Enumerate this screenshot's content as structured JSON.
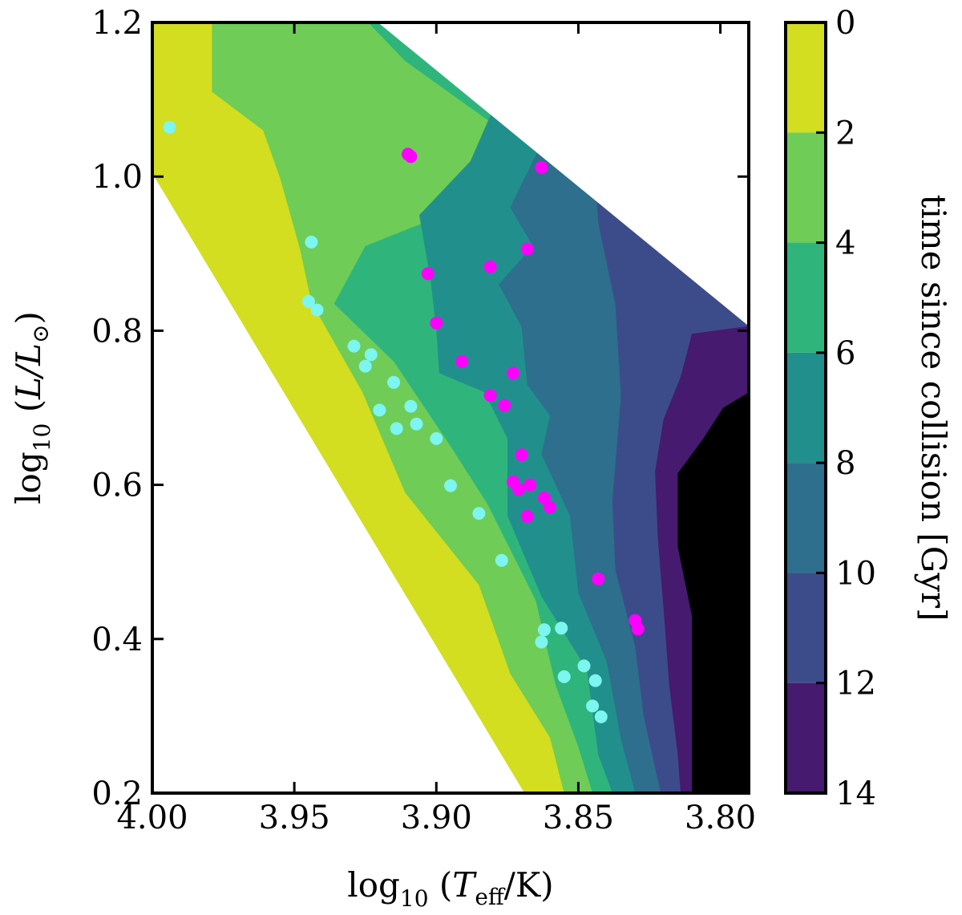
{
  "chart_data": {
    "type": "contour-scatter",
    "xlabel_prefix": "log",
    "xlabel_sub": "10",
    "xlabel_var": "T",
    "xlabel_var_sub": "eff",
    "xlabel_unit": "/K)",
    "ylabel_prefix": "log",
    "ylabel_sub": "10",
    "ylabel_var": "L/L",
    "ylabel_var_sub": "⊙",
    "xlim": [
      4.0,
      3.79
    ],
    "ylim": [
      0.2,
      1.2
    ],
    "x_ticks": [
      "4.00",
      "3.95",
      "3.90",
      "3.85",
      "3.80"
    ],
    "x_tick_values": [
      4.0,
      3.95,
      3.9,
      3.85,
      3.8
    ],
    "y_ticks": [
      "0.2",
      "0.4",
      "0.6",
      "0.8",
      "1.0",
      "1.2"
    ],
    "y_tick_values": [
      0.2,
      0.4,
      0.6,
      0.8,
      1.0,
      1.2
    ],
    "colorbar": {
      "label": "time since collision [Gyr]",
      "ticks": [
        "0",
        "2",
        "4",
        "6",
        "8",
        "10",
        "12",
        "14"
      ],
      "tick_values": [
        0,
        2,
        4,
        6,
        8,
        10,
        12,
        14
      ],
      "colors": [
        "#d2de1f",
        "#6fcc57",
        "#2fb57b",
        "#21908c",
        "#2d6f8d",
        "#3c4c8a",
        "#461a6e"
      ]
    },
    "contour_boundaries": {
      "note": "approximate contour-level boundaries in (log Teff, log L) data units",
      "domain": [
        [
          4.0,
          1.2
        ],
        [
          3.924,
          1.2
        ],
        [
          3.79,
          0.806
        ],
        [
          3.79,
          0.2
        ],
        [
          3.869,
          0.2
        ],
        [
          4.0,
          1.004
        ]
      ],
      "b2": [
        [
          4.0,
          1.2
        ],
        [
          3.979,
          1.2
        ],
        [
          3.979,
          1.11
        ],
        [
          3.961,
          1.06
        ],
        [
          3.955,
          0.998
        ],
        [
          3.948,
          0.906
        ],
        [
          3.944,
          0.837
        ],
        [
          3.926,
          0.72
        ],
        [
          3.911,
          0.59
        ],
        [
          3.885,
          0.47
        ],
        [
          3.874,
          0.355
        ],
        [
          3.86,
          0.272
        ],
        [
          3.855,
          0.2
        ]
      ],
      "b4": [
        [
          3.924,
          1.2
        ],
        [
          3.911,
          1.15
        ],
        [
          3.878,
          1.063
        ],
        [
          3.877,
          0.98
        ],
        [
          3.925,
          0.91
        ],
        [
          3.936,
          0.835
        ],
        [
          3.915,
          0.76
        ],
        [
          3.895,
          0.65
        ],
        [
          3.882,
          0.575
        ],
        [
          3.865,
          0.45
        ],
        [
          3.858,
          0.34
        ],
        [
          3.85,
          0.26
        ],
        [
          3.845,
          0.2
        ]
      ],
      "b6": [
        [
          3.882,
          1.2
        ],
        [
          3.875,
          1.13
        ],
        [
          3.888,
          1.02
        ],
        [
          3.906,
          0.95
        ],
        [
          3.902,
          0.865
        ],
        [
          3.9,
          0.8
        ],
        [
          3.899,
          0.745
        ],
        [
          3.883,
          0.72
        ],
        [
          3.875,
          0.66
        ],
        [
          3.875,
          0.56
        ],
        [
          3.863,
          0.455
        ],
        [
          3.847,
          0.36
        ],
        [
          3.843,
          0.25
        ],
        [
          3.838,
          0.2
        ]
      ],
      "b8": [
        [
          3.869,
          1.2
        ],
        [
          3.862,
          1.05
        ],
        [
          3.874,
          0.96
        ],
        [
          3.866,
          0.91
        ],
        [
          3.878,
          0.86
        ],
        [
          3.87,
          0.805
        ],
        [
          3.868,
          0.73
        ],
        [
          3.86,
          0.69
        ],
        [
          3.863,
          0.64
        ],
        [
          3.853,
          0.56
        ],
        [
          3.85,
          0.46
        ],
        [
          3.84,
          0.37
        ],
        [
          3.835,
          0.27
        ],
        [
          3.83,
          0.2
        ]
      ],
      "b10": [
        [
          3.847,
          1.2
        ],
        [
          3.843,
          0.94
        ],
        [
          3.837,
          0.835
        ],
        [
          3.835,
          0.715
        ],
        [
          3.838,
          0.58
        ],
        [
          3.837,
          0.49
        ],
        [
          3.83,
          0.39
        ],
        [
          3.827,
          0.3
        ],
        [
          3.821,
          0.2
        ]
      ],
      "b12": [
        [
          3.79,
          0.806
        ],
        [
          3.81,
          0.796
        ],
        [
          3.814,
          0.74
        ],
        [
          3.82,
          0.685
        ],
        [
          3.823,
          0.617
        ],
        [
          3.822,
          0.53
        ],
        [
          3.82,
          0.44
        ],
        [
          3.818,
          0.34
        ],
        [
          3.815,
          0.25
        ],
        [
          3.814,
          0.2
        ]
      ],
      "b14": [
        [
          3.79,
          0.72
        ],
        [
          3.799,
          0.7
        ],
        [
          3.806,
          0.66
        ],
        [
          3.815,
          0.615
        ],
        [
          3.815,
          0.52
        ],
        [
          3.81,
          0.43
        ],
        [
          3.81,
          0.3
        ],
        [
          3.81,
          0.2
        ]
      ]
    },
    "series": [
      {
        "name": "cyan points",
        "color": "#7df5f0",
        "points": [
          [
            3.994,
            1.064
          ],
          [
            3.944,
            0.915
          ],
          [
            3.945,
            0.838
          ],
          [
            3.942,
            0.827
          ],
          [
            3.929,
            0.78
          ],
          [
            3.923,
            0.769
          ],
          [
            3.925,
            0.754
          ],
          [
            3.915,
            0.733
          ],
          [
            3.92,
            0.697
          ],
          [
            3.909,
            0.702
          ],
          [
            3.914,
            0.673
          ],
          [
            3.907,
            0.679
          ],
          [
            3.9,
            0.66
          ],
          [
            3.895,
            0.599
          ],
          [
            3.885,
            0.563
          ],
          [
            3.877,
            0.502
          ],
          [
            3.862,
            0.412
          ],
          [
            3.856,
            0.414
          ],
          [
            3.863,
            0.396
          ],
          [
            3.848,
            0.365
          ],
          [
            3.855,
            0.351
          ],
          [
            3.844,
            0.346
          ],
          [
            3.845,
            0.313
          ],
          [
            3.842,
            0.299
          ]
        ]
      },
      {
        "name": "magenta points",
        "color": "#ff00ff",
        "points": [
          [
            3.91,
            1.029
          ],
          [
            3.909,
            1.026
          ],
          [
            3.863,
            1.012
          ],
          [
            3.903,
            0.874
          ],
          [
            3.881,
            0.883
          ],
          [
            3.868,
            0.906
          ],
          [
            3.9,
            0.81
          ],
          [
            3.891,
            0.76
          ],
          [
            3.873,
            0.745
          ],
          [
            3.881,
            0.716
          ],
          [
            3.876,
            0.703
          ],
          [
            3.87,
            0.639
          ],
          [
            3.873,
            0.604
          ],
          [
            3.871,
            0.594
          ],
          [
            3.867,
            0.6
          ],
          [
            3.862,
            0.583
          ],
          [
            3.86,
            0.571
          ],
          [
            3.868,
            0.559
          ],
          [
            3.843,
            0.478
          ],
          [
            3.83,
            0.424
          ],
          [
            3.829,
            0.413
          ]
        ]
      }
    ]
  }
}
